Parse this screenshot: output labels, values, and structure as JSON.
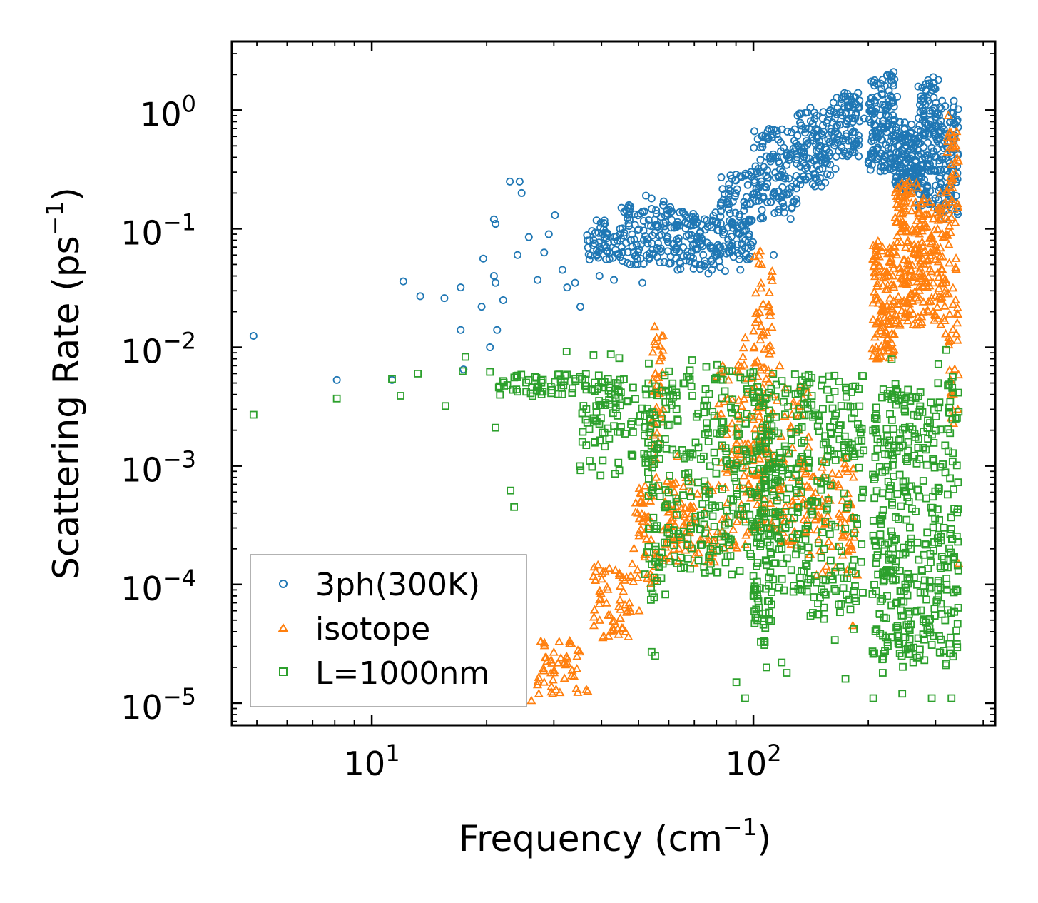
{
  "chart_data": {
    "type": "scatter",
    "title": "",
    "xlabel": "Frequency (cm",
    "xlabel_sup": "−1",
    "xlabel_tail": ")",
    "ylabel": "Scattering Rate (ps",
    "ylabel_sup": "−1",
    "ylabel_tail": ")",
    "xscale": "log",
    "yscale": "log",
    "xlim": [
      4.3,
      430
    ],
    "ylim": [
      6.5e-06,
      3.8
    ],
    "x_ticks": [
      {
        "value": 10,
        "base": "10",
        "exp": "1"
      },
      {
        "value": 100,
        "base": "10",
        "exp": "2"
      }
    ],
    "y_ticks": [
      {
        "value": 1,
        "base": "10",
        "exp": "0"
      },
      {
        "value": 0.1,
        "base": "10",
        "exp": "−1"
      },
      {
        "value": 0.01,
        "base": "10",
        "exp": "−2"
      },
      {
        "value": 0.001,
        "base": "10",
        "exp": "−3"
      },
      {
        "value": 0.0001,
        "base": "10",
        "exp": "−4"
      },
      {
        "value": 1e-05,
        "base": "10",
        "exp": "−5"
      }
    ],
    "legend_position": "lower-left",
    "series": [
      {
        "name": "3ph(300K)",
        "marker": "circle",
        "color": "#1f77b4",
        "points": [
          [
            4.9,
            0.0125
          ],
          [
            8.1,
            0.0053
          ],
          [
            11.3,
            0.0053
          ],
          [
            12.1,
            0.036
          ],
          [
            13.4,
            0.027
          ],
          [
            15.5,
            0.026
          ],
          [
            17.1,
            0.032
          ],
          [
            17.1,
            0.014
          ],
          [
            17.4,
            0.0065
          ],
          [
            19.4,
            0.022
          ],
          [
            19.6,
            0.056
          ],
          [
            20.4,
            0.01
          ],
          [
            20.9,
            0.12
          ],
          [
            21.1,
            0.11
          ],
          [
            20.9,
            0.04
          ],
          [
            21.1,
            0.035
          ],
          [
            21.3,
            0.014
          ],
          [
            22.1,
            0.025
          ],
          [
            23,
            0.25
          ],
          [
            24.4,
            0.25
          ],
          [
            24.7,
            0.2
          ],
          [
            24.1,
            0.06
          ],
          [
            25.8,
            0.085
          ],
          [
            27.2,
            0.037
          ],
          [
            28.3,
            0.063
          ],
          [
            29.1,
            0.09
          ],
          [
            30.2,
            0.13
          ],
          [
            31.6,
            0.045
          ],
          [
            32.5,
            0.032
          ],
          [
            34.1,
            0.035
          ],
          [
            35.2,
            0.022
          ],
          [
            37.2,
            0.055
          ],
          [
            38.1,
            0.08
          ],
          [
            39.5,
            0.04
          ],
          [
            41.2,
            0.065
          ],
          [
            43.1,
            0.037
          ],
          [
            45.1,
            0.15
          ],
          [
            47.3,
            0.14
          ],
          [
            49.1,
            0.05
          ],
          [
            51.2,
            0.035
          ],
          [
            52.3,
            0.19
          ],
          [
            54.1,
            0.18
          ],
          [
            58.2,
            0.17
          ],
          [
            61.1,
            0.14
          ],
          [
            63.3,
            0.045
          ],
          [
            67.2,
            0.11
          ],
          [
            70.5,
            0.12
          ],
          [
            72.4,
            0.05
          ],
          [
            76.2,
            0.042
          ],
          [
            80.1,
            0.11
          ],
          [
            84.3,
            0.044
          ],
          [
            88.1,
            0.075
          ],
          [
            92.4,
            0.045
          ],
          [
            96.3,
            0.055
          ],
          [
            98.5,
            0.3
          ],
          [
            103,
            0.32
          ],
          [
            108,
            0.28
          ],
          [
            113,
            0.06
          ],
          [
            118,
            0.45
          ],
          [
            124,
            0.4
          ],
          [
            130,
            0.42
          ],
          [
            137,
            0.95
          ],
          [
            141,
            1.05
          ],
          [
            146,
            0.38
          ],
          [
            152,
            0.85
          ],
          [
            159,
            1.0
          ],
          [
            164,
            0.32
          ],
          [
            171,
            0.9
          ],
          [
            177,
            1.1
          ],
          [
            183,
            1.3
          ],
          [
            188,
            1.4
          ],
          [
            195,
            0.85
          ],
          [
            208,
            1.2
          ],
          [
            215,
            0.9
          ],
          [
            221,
            1.6
          ],
          [
            228,
            2.0
          ],
          [
            233,
            2.1
          ],
          [
            238,
            1.3
          ],
          [
            246,
            0.45
          ],
          [
            255,
            0.6
          ],
          [
            262,
            0.32
          ],
          [
            271,
            0.25
          ],
          [
            282,
            0.4
          ],
          [
            290,
            0.35
          ],
          [
            296,
            1.9
          ],
          [
            305,
            1.8
          ],
          [
            312,
            1.2
          ],
          [
            318,
            0.22
          ],
          [
            325,
            0.16
          ],
          [
            333,
            0.7
          ],
          [
            341,
            0.8
          ]
        ],
        "bands": [
          {
            "x_start": 36,
            "x_end": 45,
            "y_low": 0.055,
            "y_high": 0.12,
            "count": 55
          },
          {
            "x_start": 45,
            "x_end": 62,
            "y_low": 0.05,
            "y_high": 0.16,
            "count": 110
          },
          {
            "x_start": 62,
            "x_end": 82,
            "y_low": 0.045,
            "y_high": 0.14,
            "count": 110
          },
          {
            "x_start": 82,
            "x_end": 100,
            "y_low": 0.055,
            "y_high": 0.3,
            "count": 110
          },
          {
            "x_start": 100,
            "x_end": 130,
            "y_low": 0.12,
            "y_high": 0.7,
            "count": 130
          },
          {
            "x_start": 130,
            "x_end": 160,
            "y_low": 0.22,
            "y_high": 1.0,
            "count": 110
          },
          {
            "x_start": 160,
            "x_end": 190,
            "y_low": 0.4,
            "y_high": 1.4,
            "count": 90
          },
          {
            "x_start": 200,
            "x_end": 235,
            "y_low": 0.3,
            "y_high": 2.0,
            "count": 140
          },
          {
            "x_start": 235,
            "x_end": 270,
            "y_low": 0.2,
            "y_high": 0.8,
            "count": 130
          },
          {
            "x_start": 270,
            "x_end": 300,
            "y_low": 0.15,
            "y_high": 1.8,
            "count": 120
          },
          {
            "x_start": 300,
            "x_end": 345,
            "y_low": 0.12,
            "y_high": 1.2,
            "count": 110
          }
        ]
      },
      {
        "name": "isotope",
        "marker": "triangle",
        "color": "#ff7f0e",
        "points": [
          [
            26.2,
            1.05e-05
          ],
          [
            27.4,
            1.2e-05
          ],
          [
            28.3,
            1.5e-05
          ],
          [
            29.5,
            1.8e-05
          ],
          [
            30.4,
            1.3e-05
          ],
          [
            31.3,
            2.4e-05
          ],
          [
            32.2,
            2.1e-05
          ],
          [
            33.4,
            1.7e-05
          ],
          [
            35.1,
            2.7e-05
          ],
          [
            36.5,
            1.3e-05
          ],
          [
            38.2,
            4.5e-05
          ],
          [
            42.1,
            5.5e-05
          ],
          [
            47.3,
            7e-05
          ],
          [
            50.2,
            6e-05
          ],
          [
            55.1,
            0.015
          ],
          [
            55.8,
            0.012
          ],
          [
            57.5,
            0.0085
          ],
          [
            63.2,
            0.0012
          ],
          [
            69.1,
            0.00035
          ],
          [
            78.3,
            0.0002
          ],
          [
            92.5,
            0.0025
          ],
          [
            95.1,
            0.012
          ],
          [
            99.3,
            0.0055
          ],
          [
            104.2,
            0.065
          ],
          [
            105.1,
            0.05
          ],
          [
            110.3,
            0.02
          ],
          [
            117.2,
            0.007
          ],
          [
            134.1,
            0.00095
          ],
          [
            146.3,
            0.00012
          ],
          [
            171.2,
            0.00025
          ],
          [
            182.1,
            4.5e-05
          ],
          [
            187.2,
            0.00012
          ],
          [
            211,
            0.008
          ],
          [
            218,
            0.02
          ],
          [
            232,
            0.05
          ],
          [
            239,
            0.18
          ],
          [
            248,
            0.23
          ],
          [
            257,
            0.04
          ],
          [
            270,
            0.018
          ],
          [
            285,
            0.035
          ],
          [
            297,
            0.15
          ],
          [
            309,
            0.2
          ],
          [
            319,
            0.013
          ],
          [
            324,
            0.9
          ],
          [
            333,
            0.6
          ],
          [
            340,
            0.013
          ],
          [
            345,
            0.00015
          ]
        ],
        "bands": [
          {
            "x_start": 27,
            "x_end": 38,
            "y_low": 1.2e-05,
            "y_high": 3.5e-05,
            "count": 40
          },
          {
            "x_start": 38,
            "x_end": 48,
            "y_low": 3.5e-05,
            "y_high": 0.00015,
            "count": 55
          },
          {
            "x_start": 48,
            "x_end": 56,
            "y_low": 0.0001,
            "y_high": 0.0007,
            "count": 50
          },
          {
            "x_start": 54,
            "x_end": 58,
            "y_low": 0.0008,
            "y_high": 0.014,
            "count": 35
          },
          {
            "x_start": 58,
            "x_end": 80,
            "y_low": 0.00015,
            "y_high": 0.0008,
            "count": 90
          },
          {
            "x_start": 80,
            "x_end": 100,
            "y_low": 0.0002,
            "y_high": 0.01,
            "count": 90
          },
          {
            "x_start": 100,
            "x_end": 112,
            "y_low": 0.0003,
            "y_high": 0.06,
            "count": 110
          },
          {
            "x_start": 112,
            "x_end": 140,
            "y_low": 0.0002,
            "y_high": 0.005,
            "count": 80
          },
          {
            "x_start": 140,
            "x_end": 185,
            "y_low": 0.00012,
            "y_high": 0.0012,
            "count": 80
          },
          {
            "x_start": 205,
            "x_end": 235,
            "y_low": 0.008,
            "y_high": 0.08,
            "count": 120
          },
          {
            "x_start": 235,
            "x_end": 270,
            "y_low": 0.015,
            "y_high": 0.25,
            "count": 130
          },
          {
            "x_start": 270,
            "x_end": 320,
            "y_low": 0.015,
            "y_high": 0.18,
            "count": 130
          },
          {
            "x_start": 320,
            "x_end": 345,
            "y_low": 0.002,
            "y_high": 0.8,
            "count": 70
          }
        ]
      },
      {
        "name": "L=1000nm",
        "marker": "square",
        "color": "#2ca02c",
        "points": [
          [
            4.9,
            0.0027
          ],
          [
            8.1,
            0.0037
          ],
          [
            11.3,
            0.0054
          ],
          [
            11.9,
            0.0039
          ],
          [
            13.2,
            0.006
          ],
          [
            15.6,
            0.0032
          ],
          [
            17.3,
            0.0063
          ],
          [
            17.6,
            0.0083
          ],
          [
            20.4,
            0.0062
          ],
          [
            21.1,
            0.0021
          ],
          [
            22.1,
            0.0052
          ],
          [
            23.1,
            0.00062
          ],
          [
            23.6,
            0.00045
          ],
          [
            26.1,
            0.0041
          ],
          [
            30.2,
            0.0051
          ],
          [
            32.4,
            0.0092
          ],
          [
            34.2,
            0.0052
          ],
          [
            38.1,
            0.0086
          ],
          [
            42.3,
            0.0087
          ],
          [
            44.5,
            0.0081
          ],
          [
            48.1,
            0.0012
          ],
          [
            53.2,
            0.0073
          ],
          [
            54.1,
            2.7e-05
          ],
          [
            55.3,
            2.5e-05
          ],
          [
            58.6,
            0.0058
          ],
          [
            63.1,
            0.00015
          ],
          [
            69.1,
            0.0078
          ],
          [
            74.2,
            0.00014
          ],
          [
            80.4,
            0.0071
          ],
          [
            86.1,
            0.00033
          ],
          [
            90.2,
            1.5e-05
          ],
          [
            95.1,
            1.1e-05
          ],
          [
            102.3,
            9e-05
          ],
          [
            108.2,
            2e-05
          ],
          [
            113.4,
            0.00015
          ],
          [
            118.6,
            2.2e-05
          ],
          [
            122.3,
            1.8e-05
          ],
          [
            131.2,
            0.00045
          ],
          [
            141.2,
            0.00011
          ],
          [
            152.3,
            0.00011
          ],
          [
            163.4,
            3.4e-05
          ],
          [
            174.2,
            1.6e-05
          ],
          [
            183.1,
            4.2e-05
          ],
          [
            206.1,
            1.1e-05
          ],
          [
            218.2,
            1.8e-05
          ],
          [
            230.3,
            0.0079
          ],
          [
            245.4,
            1.2e-05
          ],
          [
            262.3,
            2.2e-05
          ],
          [
            278.4,
            3.8e-05
          ],
          [
            293.2,
            1.1e-05
          ],
          [
            305.2,
            0.0072
          ],
          [
            320.1,
            0.0095
          ],
          [
            330.3,
            1.1e-05
          ],
          [
            343.2,
            0.00043
          ]
        ],
        "bands": [
          {
            "x_start": 21,
            "x_end": 45,
            "y_low": 0.0038,
            "y_high": 0.006,
            "count": 70
          },
          {
            "x_start": 35,
            "x_end": 55,
            "y_low": 0.0008,
            "y_high": 0.0055,
            "count": 90
          },
          {
            "x_start": 52,
            "x_end": 60,
            "y_low": 7e-05,
            "y_high": 0.005,
            "count": 80
          },
          {
            "x_start": 60,
            "x_end": 100,
            "y_low": 0.00012,
            "y_high": 0.007,
            "count": 220
          },
          {
            "x_start": 100,
            "x_end": 112,
            "y_low": 3e-05,
            "y_high": 0.005,
            "count": 130
          },
          {
            "x_start": 112,
            "x_end": 140,
            "y_low": 8e-05,
            "y_high": 0.006,
            "count": 140
          },
          {
            "x_start": 140,
            "x_end": 195,
            "y_low": 5e-05,
            "y_high": 0.006,
            "count": 160
          },
          {
            "x_start": 205,
            "x_end": 260,
            "y_low": 2e-05,
            "y_high": 0.005,
            "count": 220
          },
          {
            "x_start": 260,
            "x_end": 345,
            "y_low": 2e-05,
            "y_high": 0.006,
            "count": 200
          }
        ]
      }
    ]
  }
}
